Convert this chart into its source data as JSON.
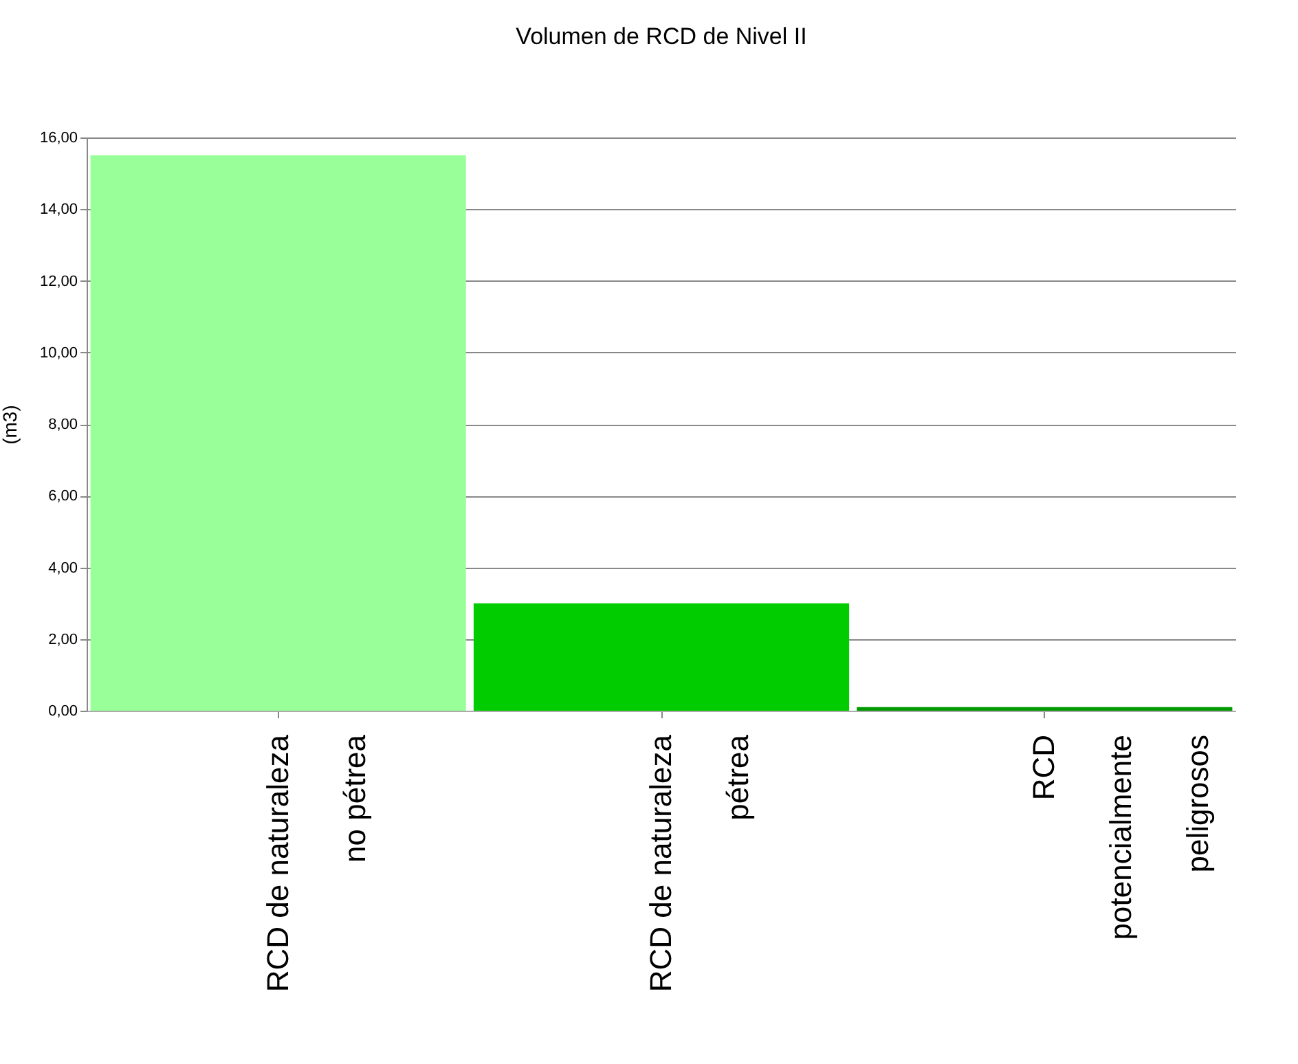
{
  "chart_data": {
    "type": "bar",
    "title": "Volumen de RCD de Nivel II",
    "ylabel": "(m3)",
    "categories": [
      "RCD de naturaleza\nno pétrea",
      "RCD de naturaleza\npétrea",
      "RCD\npotencialmente\npeligrosos"
    ],
    "values": [
      15.5,
      3.0,
      0.1
    ],
    "colors": [
      "#99ff99",
      "#00cc00",
      "#009900"
    ],
    "ylim": [
      0,
      16
    ],
    "yticks": [
      {
        "value": 0,
        "label": "0,00"
      },
      {
        "value": 2,
        "label": "2,00"
      },
      {
        "value": 4,
        "label": "4,00"
      },
      {
        "value": 6,
        "label": "6,00"
      },
      {
        "value": 8,
        "label": "8,00"
      },
      {
        "value": 10,
        "label": "10,00"
      },
      {
        "value": 12,
        "label": "12,00"
      },
      {
        "value": 14,
        "label": "14,00"
      },
      {
        "value": 16,
        "label": "16,00"
      }
    ],
    "grid": "y",
    "legend": false
  }
}
